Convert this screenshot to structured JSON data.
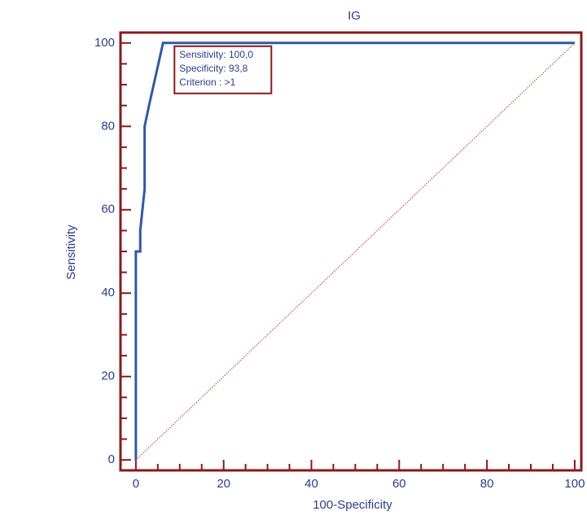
{
  "chart_data": {
    "type": "line",
    "title": "IG",
    "x_label": "100-Specificity",
    "y_label": "Sensitivity",
    "x": [
      0,
      0,
      1,
      1,
      2,
      2,
      2,
      3,
      6.2,
      100
    ],
    "series": [
      {
        "color": "#2f5aa8",
        "values": [
          0,
          50,
          50,
          55,
          65,
          75,
          80,
          85,
          100,
          100
        ]
      }
    ],
    "reference_line": {
      "x": [
        0,
        100
      ],
      "values": [
        0,
        100
      ],
      "color": "#c0392b"
    },
    "tooltip": {
      "x": 6.2,
      "y": 100,
      "lines": [
        "Sensitivity: 100,0",
        "Specificity: 93,8",
        "Criterion : >1"
      ]
    },
    "xlim": [
      -3.5,
      101.5
    ],
    "ylim": [
      -2.5,
      102.5
    ],
    "xticks": [
      0,
      20,
      40,
      60,
      80,
      100
    ],
    "yticks": [
      0,
      20,
      40,
      60,
      80,
      100
    ],
    "xminor_ticks": [
      5,
      10,
      15,
      25,
      30,
      35,
      45,
      50,
      55,
      65,
      70,
      75,
      85,
      90,
      95
    ],
    "yminor_ticks": [
      5,
      10,
      15,
      25,
      30,
      35,
      45,
      50,
      55,
      65,
      70,
      75,
      85,
      90,
      95
    ],
    "frame_color": "#8b1a1a"
  }
}
